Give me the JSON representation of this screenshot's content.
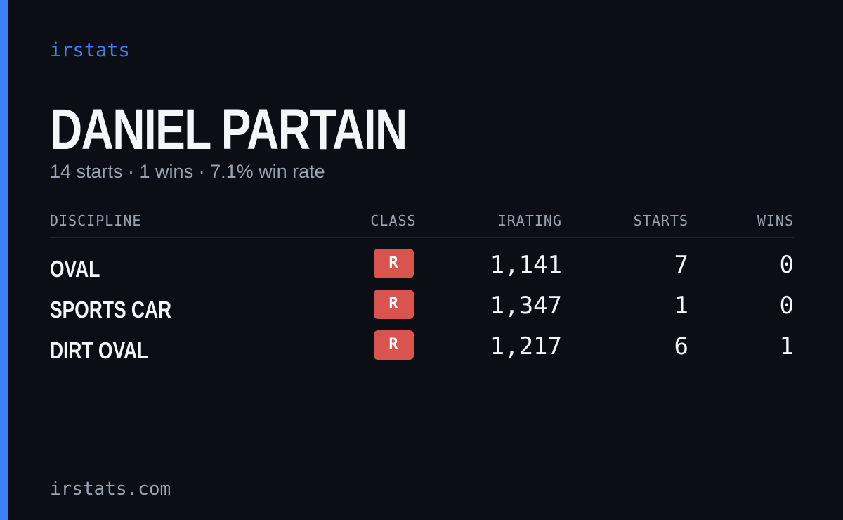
{
  "brand": "irstats",
  "driver": {
    "name": "DANIEL PARTAIN",
    "summary": "14 starts · 1 wins · 7.1% win rate"
  },
  "table": {
    "headers": [
      "DISCIPLINE",
      "CLASS",
      "IRATING",
      "STARTS",
      "WINS"
    ],
    "rows": [
      [
        "OVAL",
        "R",
        "1,141",
        7,
        0
      ],
      [
        "SPORTS CAR",
        "R",
        "1,347",
        1,
        0
      ],
      [
        "DIRT OVAL",
        "R",
        "1,217",
        6,
        1
      ]
    ]
  },
  "footer": "irstats.com"
}
